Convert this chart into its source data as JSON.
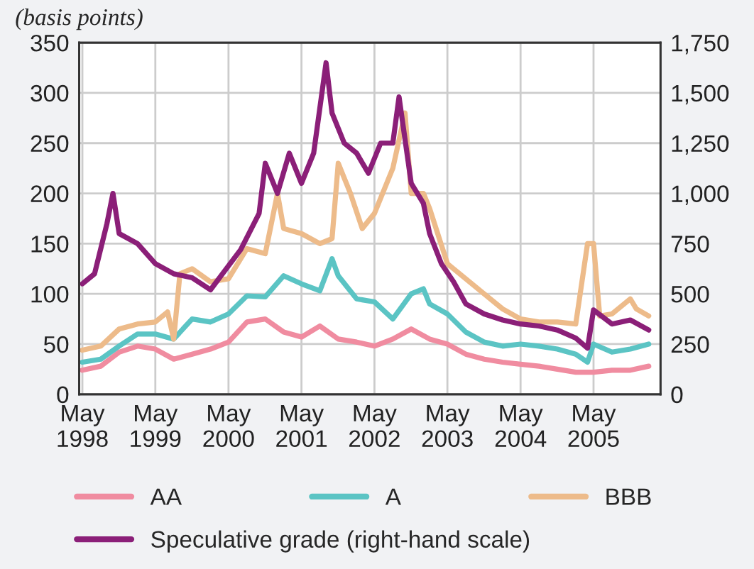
{
  "chart_data": {
    "type": "line",
    "ylabel": "(basis points)",
    "y2label": null,
    "x": [
      "1998-05",
      "1998-08",
      "1998-11",
      "1999-02",
      "1999-05",
      "1999-08",
      "1999-11",
      "2000-02",
      "2000-05",
      "2000-08",
      "2000-11",
      "2001-02",
      "2001-05",
      "2001-08",
      "2001-11",
      "2002-02",
      "2002-05",
      "2002-08",
      "2002-11",
      "2003-02",
      "2003-05",
      "2003-08",
      "2003-11",
      "2004-02",
      "2004-05",
      "2004-08",
      "2004-11",
      "2005-02",
      "2005-05",
      "2005-08",
      "2005-11",
      "2006-02"
    ],
    "series": [
      {
        "name": "AA",
        "color": "#f08ca0",
        "values": [
          24,
          28,
          42,
          48,
          45,
          35,
          40,
          45,
          52,
          72,
          75,
          62,
          57,
          68,
          55,
          52,
          48,
          55,
          65,
          55,
          50,
          40,
          35,
          32,
          30,
          28,
          25,
          22,
          22,
          24,
          24,
          28
        ]
      },
      {
        "name": "A",
        "color": "#5bc4c4",
        "x": [
          "1998-05",
          "1998-08",
          "1998-11",
          "1999-02",
          "1999-05",
          "1999-08",
          "1999-11",
          "2000-02",
          "2000-05",
          "2000-08",
          "2000-11",
          "2001-02",
          "2001-05",
          "2001-08",
          "2001-10",
          "2001-11",
          "2002-02",
          "2002-05",
          "2002-08",
          "2002-11",
          "2003-01",
          "2003-02",
          "2003-05",
          "2003-08",
          "2003-11",
          "2004-02",
          "2004-05",
          "2004-08",
          "2004-11",
          "2005-02",
          "2005-04",
          "2005-05",
          "2005-08",
          "2005-11",
          "2006-02"
        ],
        "values": [
          32,
          35,
          48,
          60,
          60,
          55,
          75,
          72,
          80,
          98,
          97,
          118,
          110,
          103,
          135,
          118,
          95,
          92,
          75,
          100,
          105,
          90,
          80,
          62,
          52,
          48,
          50,
          48,
          45,
          40,
          32,
          50,
          42,
          45,
          50
        ]
      },
      {
        "name": "BBB",
        "color": "#edbb8a",
        "x": [
          "1998-05",
          "1998-08",
          "1998-11",
          "1999-02",
          "1999-05",
          "1999-07",
          "1999-08",
          "1999-09",
          "1999-11",
          "2000-02",
          "2000-05",
          "2000-08",
          "2000-11",
          "2001-01",
          "2001-02",
          "2001-05",
          "2001-08",
          "2001-10",
          "2001-11",
          "2002-01",
          "2002-03",
          "2002-05",
          "2002-08",
          "2002-10",
          "2002-11",
          "2003-01",
          "2003-02",
          "2003-05",
          "2003-08",
          "2003-11",
          "2004-02",
          "2004-05",
          "2004-08",
          "2004-11",
          "2005-02",
          "2005-04",
          "2005-05",
          "2005-06",
          "2005-08",
          "2005-11",
          "2005-12",
          "2006-02"
        ],
        "values": [
          44,
          48,
          65,
          70,
          72,
          82,
          55,
          120,
          125,
          112,
          115,
          145,
          140,
          200,
          165,
          160,
          150,
          155,
          230,
          200,
          165,
          180,
          225,
          280,
          200,
          200,
          185,
          130,
          115,
          100,
          85,
          75,
          72,
          72,
          70,
          150,
          150,
          78,
          80,
          95,
          85,
          78
        ]
      },
      {
        "name": "Speculative grade (right-hand scale)",
        "color": "#8b1f78",
        "axis": "y2",
        "x": [
          "1998-05",
          "1998-07",
          "1998-09",
          "1998-10",
          "1998-11",
          "1999-02",
          "1999-05",
          "1999-08",
          "1999-11",
          "2000-02",
          "2000-04",
          "2000-07",
          "2000-10",
          "2000-11",
          "2001-01",
          "2001-03",
          "2001-05",
          "2001-07",
          "2001-09",
          "2001-10",
          "2001-12",
          "2002-02",
          "2002-04",
          "2002-06",
          "2002-08",
          "2002-09",
          "2002-11",
          "2003-01",
          "2003-02",
          "2003-04",
          "2003-06",
          "2003-08",
          "2003-11",
          "2004-02",
          "2004-05",
          "2004-08",
          "2004-11",
          "2005-02",
          "2005-04",
          "2005-05",
          "2005-08",
          "2005-11",
          "2006-02"
        ],
        "values": [
          550,
          600,
          850,
          1000,
          800,
          750,
          650,
          600,
          580,
          520,
          600,
          720,
          900,
          1150,
          1000,
          1200,
          1050,
          1200,
          1650,
          1400,
          1250,
          1200,
          1100,
          1250,
          1250,
          1480,
          1050,
          950,
          800,
          650,
          560,
          450,
          400,
          370,
          350,
          340,
          320,
          280,
          230,
          420,
          350,
          370,
          320
        ]
      }
    ],
    "xlim": [
      "1998-04-15",
      "2006-04-01"
    ],
    "xticks": [
      {
        "value": "1998-05",
        "label": "May\n1998"
      },
      {
        "value": "1999-05",
        "label": "May\n1999"
      },
      {
        "value": "2000-05",
        "label": "May\n2000"
      },
      {
        "value": "2001-05",
        "label": "May\n2001"
      },
      {
        "value": "2002-05",
        "label": "May\n2002"
      },
      {
        "value": "2003-05",
        "label": "May\n2003"
      },
      {
        "value": "2004-05",
        "label": "May\n2004"
      },
      {
        "value": "2005-05",
        "label": "May\n2005"
      }
    ],
    "ylim": [
      0,
      350
    ],
    "yticks": [
      0,
      50,
      100,
      150,
      200,
      250,
      300,
      350
    ],
    "y2lim": [
      0,
      1750
    ],
    "y2ticks": [
      0,
      {
        "value": 250,
        "label": "250"
      },
      {
        "value": 500,
        "label": "500"
      },
      {
        "value": 750,
        "label": "750"
      },
      {
        "value": 1000,
        "label": "1,000"
      },
      {
        "value": 1250,
        "label": "1,250"
      },
      {
        "value": 1500,
        "label": "1,500"
      },
      {
        "value": 1750,
        "label": "1,750"
      }
    ],
    "grid": true,
    "legend": "bottom",
    "line_style": "solid",
    "marker": "none"
  }
}
